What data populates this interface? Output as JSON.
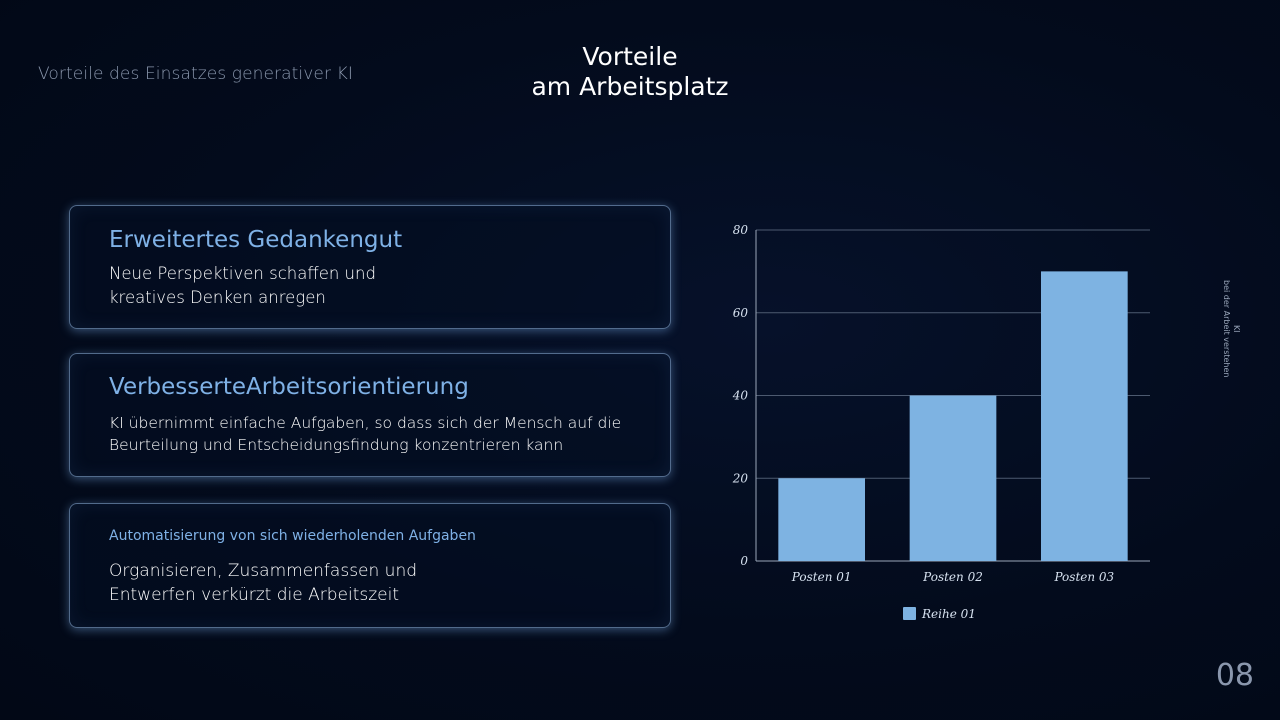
{
  "header": {
    "eyebrow": "Vorteile des Einsatzes generativer KI",
    "title_line1": "Vorteile",
    "title_line2": "am Arbeitsplatz"
  },
  "cards": [
    {
      "heading": "Erweitertes Gedankengut",
      "body_lines": [
        "Neue Perspektiven schaffen und",
        "kreatives Denken anregen"
      ]
    },
    {
      "heading": "VerbesserteArbeitsorientierung",
      "body_lines": [
        "KI übernimmt einfache Aufgaben, so dass sich der Mensch auf die",
        "Beurteilung und Entscheidungsfindung konzentrieren kann"
      ]
    },
    {
      "heading": "Automatisierung von sich wiederholenden Aufgaben",
      "body_lines": [
        "Organisieren, Zusammenfassen und",
        "Entwerfen verkürzt die Arbeitszeit"
      ]
    }
  ],
  "side_label": {
    "line1": "KI",
    "line2": "bei der Arbeit verstehen"
  },
  "page_number": "08",
  "colors": {
    "accent": "#7fb1e6",
    "bar": "#7eb3e2",
    "background": "#030b1c"
  },
  "chart_data": {
    "type": "bar",
    "categories": [
      "Posten 01",
      "Posten 02",
      "Posten 03"
    ],
    "series": [
      {
        "name": "Reihe 01",
        "values": [
          20,
          40,
          70
        ]
      }
    ],
    "ylim": [
      0,
      80
    ],
    "yticks": [
      0,
      20,
      40,
      60,
      80
    ],
    "grid": true,
    "legend": "bottom"
  }
}
